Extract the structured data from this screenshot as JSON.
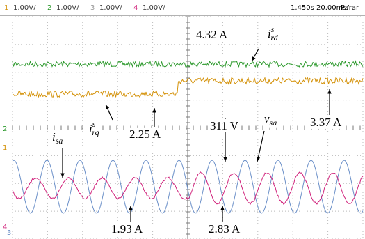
{
  "header": {
    "channels": [
      {
        "number": "1",
        "scale": "1.00V/",
        "color": "#d4920a"
      },
      {
        "number": "2",
        "scale": "1.00V/",
        "color": "#2e9a2e"
      },
      {
        "number": "3",
        "scale": "1.00V/",
        "color": "#9a9a9a"
      },
      {
        "number": "4",
        "scale": "1.00V/",
        "color": "#d0207a"
      }
    ],
    "time": "1.450s",
    "timebase": "20.00ms/",
    "status": "Parar"
  },
  "markers": [
    {
      "label": "2",
      "color": "#2e9a2e"
    },
    {
      "label": "1",
      "color": "#d4920a"
    },
    {
      "label": "4",
      "color": "#d0207a"
    },
    {
      "label": "3",
      "color": "#6a8fc8"
    }
  ],
  "annotations": [
    {
      "text": "4.32 A"
    },
    {
      "base": "i",
      "sup": "s",
      "sub": "rd"
    },
    {
      "base": "i",
      "sup": "s",
      "sub": "rq"
    },
    {
      "text": "2.25 A"
    },
    {
      "text": "3.37 A"
    },
    {
      "text": "311 V"
    },
    {
      "base": "v",
      "sub": "sa"
    },
    {
      "base": "i",
      "sub": "sa"
    },
    {
      "text": "1.93 A"
    },
    {
      "text": "2.83 A"
    }
  ]
}
